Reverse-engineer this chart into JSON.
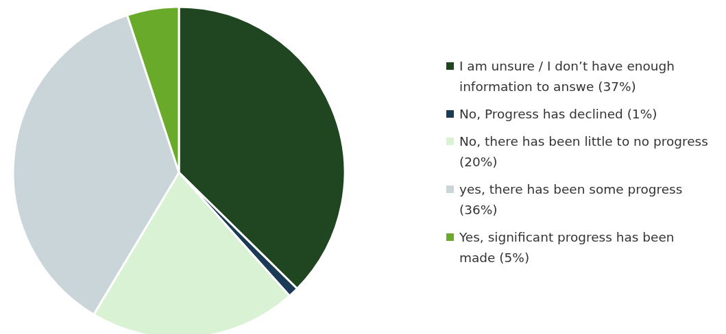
{
  "chart_data": {
    "type": "pie",
    "legend": "right",
    "categories": [
      "I am unsure / I don’t have enough information to answe (37%)",
      "No, Progress has declined (1%)",
      "No, there has been little to no progress (20%)",
      "yes, there has been some progress (36%)",
      "Yes, significant progress has been made (5%)"
    ],
    "values": [
      37,
      1,
      20,
      36,
      5
    ],
    "colors": [
      "#1f4620",
      "#1b3a55",
      "#d9f2d4",
      "#c9d5d9",
      "#6aaa2a"
    ]
  }
}
